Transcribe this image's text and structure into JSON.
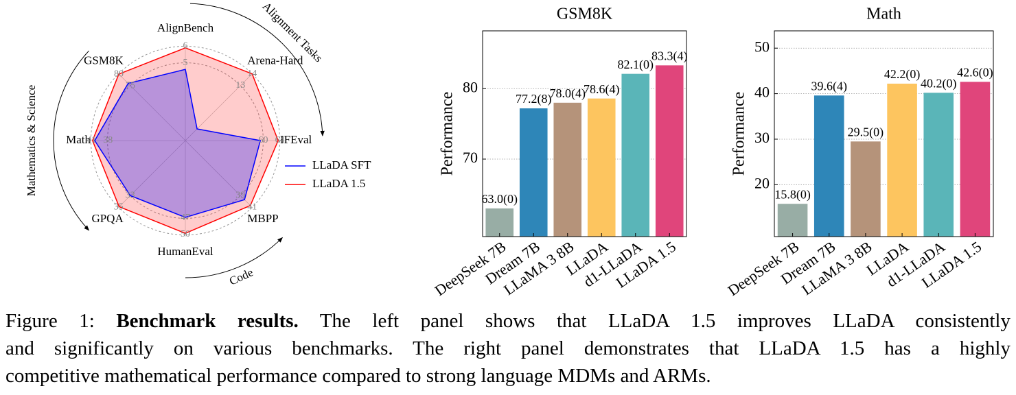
{
  "chart_data": [
    {
      "type": "radar",
      "axes": [
        {
          "name": "AlignBench",
          "lim": [
            0.3,
            6.1
          ],
          "ticks": [
            5,
            6
          ]
        },
        {
          "name": "Arena-Hard",
          "lim": [
            8.3,
            14.1
          ],
          "ticks": [
            13,
            14
          ]
        },
        {
          "name": "IFEval",
          "lim": [
            41.2,
            64.4
          ],
          "ticks": [
            60,
            64
          ]
        },
        {
          "name": "MBPP",
          "lim": [
            29.6,
            41.2
          ],
          "ticks": [
            39,
            41
          ]
        },
        {
          "name": "HumanEval",
          "lim": [
            32.9,
            50.4
          ],
          "ticks": [
            47,
            50
          ]
        },
        {
          "name": "GPQA",
          "lim": [
            23.6,
            35.2
          ],
          "ticks": [
            33,
            35
          ]
        },
        {
          "name": "Math",
          "lim": [
            23.9,
            41.4
          ],
          "ticks": [
            38,
            41
          ]
        },
        {
          "name": "GSM8K",
          "lim": [
            51.5,
            80.6
          ],
          "ticks": [
            75,
            80
          ]
        }
      ],
      "series": [
        {
          "name": "LLaDA 1.5",
          "color": "#ff0000",
          "values": [
            5.9,
            14.0,
            63.6,
            40.7,
            49.8,
            34.9,
            40.8,
            80.0
          ]
        },
        {
          "name": "LLaDA SFT",
          "color": "#0000ff",
          "values": [
            4.6,
            9.3,
            59.3,
            39.7,
            46.9,
            33.0,
            40.4,
            76.0
          ]
        }
      ],
      "annotations": [
        "Alignment Tasks",
        "Mathematics & Science",
        "Code"
      ]
    },
    {
      "type": "bar",
      "title": "GSM8K",
      "ylabel": "Performance",
      "categories": [
        "DeepSeek 7B",
        "Dream 7B",
        "LLaMA 3 8B",
        "LLaDA",
        "d1-LLaDA",
        "LLaDA 1.5"
      ],
      "values": [
        63.0,
        77.2,
        78.0,
        78.6,
        82.1,
        83.3
      ],
      "value_labels": [
        "63.0(0)",
        "77.2(8)",
        "78.0(4)",
        "78.6(4)",
        "82.1(0)",
        "83.3(4)"
      ],
      "colors": [
        "#98ada5",
        "#2e86b8",
        "#b5937a",
        "#fdc55f",
        "#5ab5b8",
        "#e0457b"
      ],
      "ylim": [
        59,
        88.2
      ],
      "yticks": [
        70,
        80
      ],
      "grid": true
    },
    {
      "type": "bar",
      "title": "Math",
      "ylabel": "Performance",
      "categories": [
        "DeepSeek 7B",
        "Dream 7B",
        "LLaMA 3 8B",
        "LLaDA",
        "d1-LLaDA",
        "LLaDA 1.5"
      ],
      "values": [
        15.8,
        39.6,
        29.5,
        42.2,
        40.2,
        42.6
      ],
      "value_labels": [
        "15.8(0)",
        "39.6(4)",
        "29.5(0)",
        "42.2(0)",
        "40.2(0)",
        "42.6(0)"
      ],
      "colors": [
        "#98ada5",
        "#2e86b8",
        "#b5937a",
        "#fdc55f",
        "#5ab5b8",
        "#e0457b"
      ],
      "ylim": [
        8.6,
        53.8
      ],
      "yticks": [
        20,
        30,
        40,
        50
      ],
      "grid": true
    }
  ],
  "caption": {
    "label": "Figure 1:",
    "title": "Benchmark results.",
    "lines": [
      "The left panel shows that LLaDA 1.5 improves LLaDA consistently",
      "and significantly on various benchmarks. The right panel demonstrates that LLaDA 1.5 has a highly",
      "competitive mathematical performance compared to strong language MDMs and ARMs."
    ]
  }
}
